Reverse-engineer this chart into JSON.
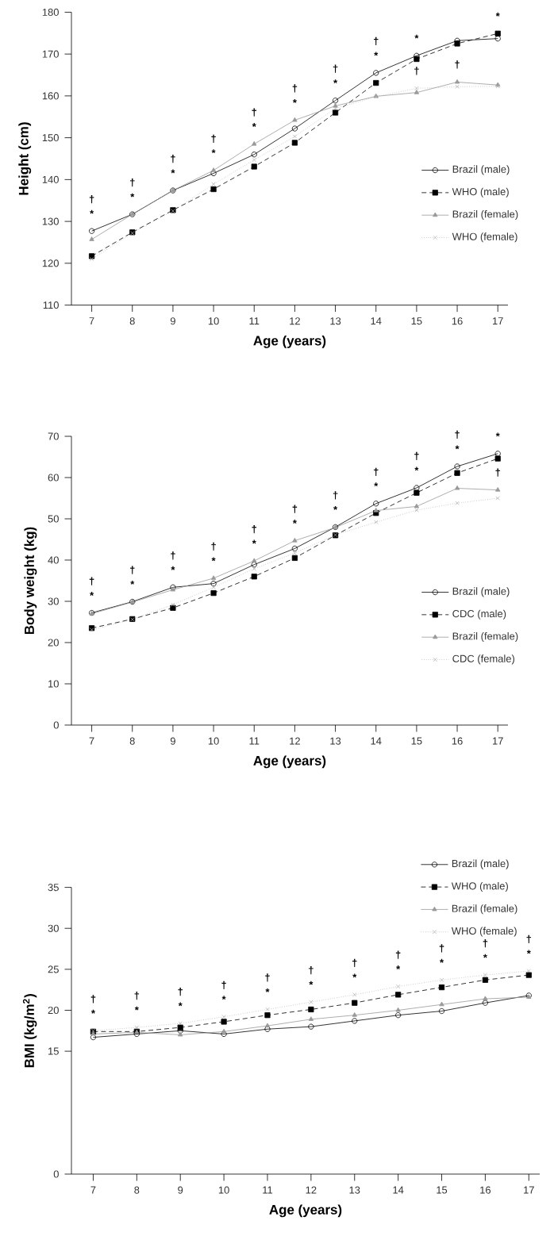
{
  "chart_data": [
    {
      "type": "line",
      "xlabel": "Age (years)",
      "ylabel": "Height (cm)",
      "x": [
        7,
        8,
        9,
        10,
        11,
        12,
        13,
        14,
        15,
        16,
        17
      ],
      "xlim": [
        6.5,
        17.25
      ],
      "xticks": [
        7,
        8,
        9,
        10,
        11,
        12,
        13,
        14,
        15,
        16,
        17
      ],
      "ylim": [
        110,
        180
      ],
      "yticks": [
        110,
        120,
        130,
        140,
        150,
        160,
        170,
        180
      ],
      "grid": false,
      "legend": "right",
      "series": [
        {
          "name": "Brazil (male)",
          "color": "#000000",
          "marker": "circle",
          "line_style": "solid",
          "values": [
            127.7,
            131.7,
            137.4,
            141.5,
            146.0,
            152.2,
            158.9,
            165.5,
            169.6,
            173.2,
            173.7
          ]
        },
        {
          "name": "WHO (male)",
          "color": "#000000",
          "marker": "square",
          "line_style": "dashed",
          "values": [
            121.7,
            127.4,
            132.7,
            137.7,
            143.1,
            148.8,
            156.0,
            163.1,
            168.8,
            172.5,
            174.9
          ]
        },
        {
          "name": "Brazil (female)",
          "color": "#999999",
          "marker": "triangle",
          "line_style": "solid",
          "values": [
            125.7,
            131.7,
            137.4,
            142.2,
            148.5,
            154.2,
            157.6,
            159.9,
            160.8,
            163.3,
            162.6
          ]
        },
        {
          "name": "WHO (female)",
          "color": "#b3b3b3",
          "marker": "cross",
          "line_style": "dotted",
          "values": [
            121.0,
            127.2,
            132.5,
            138.9,
            144.7,
            150.3,
            157.0,
            159.8,
            161.8,
            162.2,
            162.3
          ]
        }
      ],
      "annotations": [
        {
          "text": "*",
          "x": 7,
          "y": 127.7
        },
        {
          "text": "†",
          "x": 7,
          "y": 127.7
        },
        {
          "text": "*",
          "x": 8,
          "y": 131.7
        },
        {
          "text": "†",
          "x": 8,
          "y": 131.7
        },
        {
          "text": "*",
          "x": 9,
          "y": 137.4
        },
        {
          "text": "†",
          "x": 9,
          "y": 137.4
        },
        {
          "text": "*",
          "x": 10,
          "y": 142.2
        },
        {
          "text": "†",
          "x": 10,
          "y": 142.2
        },
        {
          "text": "*",
          "x": 11,
          "y": 148.5
        },
        {
          "text": "†",
          "x": 11,
          "y": 148.5
        },
        {
          "text": "*",
          "x": 12,
          "y": 154.2
        },
        {
          "text": "†",
          "x": 12,
          "y": 154.2
        },
        {
          "text": "*",
          "x": 13,
          "y": 158.9
        },
        {
          "text": "†",
          "x": 13,
          "y": 158.9
        },
        {
          "text": "*",
          "x": 14,
          "y": 165.5
        },
        {
          "text": "†",
          "x": 14,
          "y": 165.5
        },
        {
          "text": "*",
          "x": 15,
          "y": 169.6
        },
        {
          "text": "†",
          "x": 15,
          "y": 161.8
        },
        {
          "text": "†",
          "x": 16,
          "y": 163.3
        },
        {
          "text": "*",
          "x": 17,
          "y": 174.9
        }
      ]
    },
    {
      "type": "line",
      "xlabel": "Age (years)",
      "ylabel": "Body weight (kg)",
      "x": [
        7,
        8,
        9,
        10,
        11,
        12,
        13,
        14,
        15,
        16,
        17
      ],
      "xlim": [
        6.5,
        17.25
      ],
      "xticks": [
        7,
        8,
        9,
        10,
        11,
        12,
        13,
        14,
        15,
        16,
        17
      ],
      "ylim": [
        0,
        70
      ],
      "yticks": [
        0,
        10,
        20,
        30,
        40,
        50,
        60,
        70
      ],
      "grid": false,
      "legend": "right",
      "series": [
        {
          "name": "Brazil (male)",
          "color": "#000000",
          "marker": "circle",
          "line_style": "solid",
          "values": [
            27.2,
            29.9,
            33.4,
            34.3,
            38.9,
            42.8,
            48.0,
            53.7,
            57.5,
            62.7,
            65.8
          ]
        },
        {
          "name": "CDC (male)",
          "color": "#000000",
          "marker": "square",
          "line_style": "dashed",
          "values": [
            23.5,
            25.7,
            28.4,
            32.0,
            36.0,
            40.5,
            46.0,
            51.4,
            56.3,
            61.1,
            64.6
          ]
        },
        {
          "name": "Brazil (female)",
          "color": "#999999",
          "marker": "triangle",
          "line_style": "solid",
          "values": [
            27.0,
            29.8,
            32.8,
            35.6,
            39.8,
            44.7,
            47.9,
            52.0,
            53.0,
            57.4,
            57.0
          ]
        },
        {
          "name": "CDC (female)",
          "color": "#b3b3b3",
          "marker": "cross",
          "line_style": "dotted",
          "values": [
            23.1,
            25.6,
            29.2,
            33.4,
            37.9,
            41.7,
            46.1,
            49.2,
            52.1,
            53.8,
            55.0
          ]
        }
      ],
      "annotations": [
        {
          "text": "*",
          "x": 7,
          "y": 27.2
        },
        {
          "text": "†",
          "x": 7,
          "y": 27.2
        },
        {
          "text": "*",
          "x": 8,
          "y": 29.9
        },
        {
          "text": "†",
          "x": 8,
          "y": 29.9
        },
        {
          "text": "*",
          "x": 9,
          "y": 33.4
        },
        {
          "text": "†",
          "x": 9,
          "y": 33.4
        },
        {
          "text": "*",
          "x": 10,
          "y": 35.6
        },
        {
          "text": "†",
          "x": 10,
          "y": 35.6
        },
        {
          "text": "*",
          "x": 11,
          "y": 39.8
        },
        {
          "text": "†",
          "x": 11,
          "y": 39.8
        },
        {
          "text": "*",
          "x": 12,
          "y": 44.7
        },
        {
          "text": "†",
          "x": 12,
          "y": 44.7
        },
        {
          "text": "*",
          "x": 13,
          "y": 48.0
        },
        {
          "text": "†",
          "x": 13,
          "y": 48.0
        },
        {
          "text": "*",
          "x": 14,
          "y": 53.7
        },
        {
          "text": "†",
          "x": 14,
          "y": 53.7
        },
        {
          "text": "*",
          "x": 15,
          "y": 57.5
        },
        {
          "text": "†",
          "x": 15,
          "y": 57.5
        },
        {
          "text": "*",
          "x": 16,
          "y": 62.7
        },
        {
          "text": "†",
          "x": 16,
          "y": 62.7
        },
        {
          "text": "*",
          "x": 17,
          "y": 65.8
        },
        {
          "text": "†",
          "x": 17,
          "y": 57.0
        }
      ]
    },
    {
      "type": "line",
      "xlabel": "Age (years)",
      "ylabel": "BMI (kg/m$^{2}$)",
      "x": [
        7,
        8,
        9,
        10,
        11,
        12,
        13,
        14,
        15,
        16,
        17
      ],
      "xlim": [
        6.5,
        17.25
      ],
      "xticks": [
        7,
        8,
        9,
        10,
        11,
        12,
        13,
        14,
        15,
        16,
        17
      ],
      "ylim": [
        0,
        35
      ],
      "yticks": [
        0,
        15,
        20,
        25,
        30,
        35
      ],
      "grid": false,
      "legend": "top right",
      "series": [
        {
          "name": "Brazil (male)",
          "color": "#000000",
          "marker": "circle",
          "line_style": "solid",
          "values": [
            16.7,
            17.1,
            17.5,
            17.1,
            17.7,
            18.0,
            18.7,
            19.4,
            19.9,
            20.9,
            21.8
          ]
        },
        {
          "name": "WHO (male)",
          "color": "#000000",
          "marker": "square",
          "line_style": "dashed",
          "values": [
            17.4,
            17.4,
            17.9,
            18.6,
            19.4,
            20.1,
            20.9,
            21.9,
            22.8,
            23.7,
            24.3
          ]
        },
        {
          "name": "Brazil (female)",
          "color": "#999999",
          "marker": "triangle",
          "line_style": "solid",
          "values": [
            17.1,
            17.3,
            17.0,
            17.4,
            18.1,
            18.9,
            19.4,
            20.0,
            20.7,
            21.4,
            21.6
          ]
        },
        {
          "name": "WHO (female)",
          "color": "#b3b3b3",
          "marker": "cross",
          "line_style": "dotted",
          "values": [
            17.5,
            17.9,
            18.4,
            19.2,
            20.1,
            21.0,
            21.9,
            22.9,
            23.7,
            24.3,
            24.8
          ]
        }
      ],
      "annotations": [
        {
          "text": "*",
          "x": 7,
          "y": 17.5
        },
        {
          "text": "†",
          "x": 7,
          "y": 17.5
        },
        {
          "text": "*",
          "x": 8,
          "y": 17.9
        },
        {
          "text": "†",
          "x": 8,
          "y": 17.9
        },
        {
          "text": "*",
          "x": 9,
          "y": 18.4
        },
        {
          "text": "†",
          "x": 9,
          "y": 18.4
        },
        {
          "text": "*",
          "x": 10,
          "y": 19.2
        },
        {
          "text": "†",
          "x": 10,
          "y": 19.2
        },
        {
          "text": "*",
          "x": 11,
          "y": 20.1
        },
        {
          "text": "†",
          "x": 11,
          "y": 20.1
        },
        {
          "text": "*",
          "x": 12,
          "y": 21.0
        },
        {
          "text": "†",
          "x": 12,
          "y": 21.0
        },
        {
          "text": "*",
          "x": 13,
          "y": 21.9
        },
        {
          "text": "†",
          "x": 13,
          "y": 21.9
        },
        {
          "text": "*",
          "x": 14,
          "y": 22.9
        },
        {
          "text": "†",
          "x": 14,
          "y": 22.9
        },
        {
          "text": "*",
          "x": 15,
          "y": 23.7
        },
        {
          "text": "†",
          "x": 15,
          "y": 23.7
        },
        {
          "text": "*",
          "x": 16,
          "y": 24.3
        },
        {
          "text": "†",
          "x": 16,
          "y": 24.3
        },
        {
          "text": "*",
          "x": 17,
          "y": 24.8
        },
        {
          "text": "†",
          "x": 17,
          "y": 24.8
        }
      ]
    }
  ]
}
